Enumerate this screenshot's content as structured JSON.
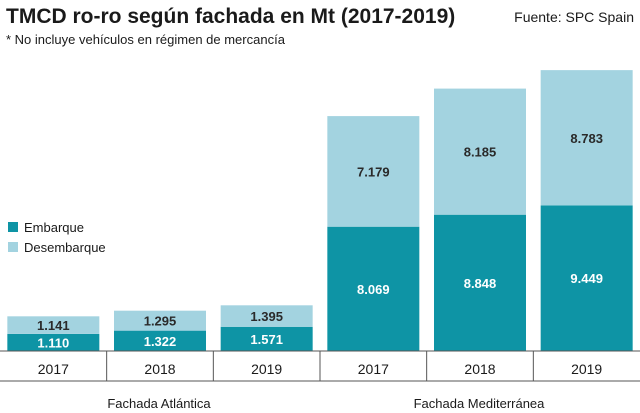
{
  "header": {
    "title": "TMCD ro-ro según fachada en Mt (2017-2019)",
    "subtitle": "* No incluye vehículos en régimen de mercancía",
    "source": "Fuente: SPC Spain"
  },
  "colors": {
    "embarque": "#0e94a5",
    "desembarque": "#a3d3e0",
    "axis": "#555555"
  },
  "chart_data": {
    "type": "bar",
    "stacked": true,
    "title": "TMCD ro-ro según fachada en Mt (2017-2019)",
    "subtitle": "* No incluye vehículos en régimen de mercancía",
    "categories": [
      "2017",
      "2018",
      "2019",
      "2017",
      "2018",
      "2019"
    ],
    "groups": [
      {
        "label": "Fachada Atlántica",
        "categories": [
          "2017",
          "2018",
          "2019"
        ]
      },
      {
        "label": "Fachada Mediterránea",
        "categories": [
          "2017",
          "2018",
          "2019"
        ]
      }
    ],
    "series": [
      {
        "name": "Embarque",
        "values": [
          1.11,
          1.322,
          1.571,
          8.069,
          8.848,
          9.449
        ],
        "labels": [
          "1.110",
          "1.322",
          "1.571",
          "8.069",
          "8.848",
          "9.449"
        ]
      },
      {
        "name": "Desembarque",
        "values": [
          1.141,
          1.295,
          1.395,
          7.179,
          8.185,
          8.783
        ],
        "labels": [
          "1.141",
          "1.295",
          "1.395",
          "7.179",
          "8.185",
          "8.783"
        ]
      }
    ],
    "legend": {
      "placement": "left",
      "entries": [
        "Embarque",
        "Desembarque"
      ]
    },
    "grid": false,
    "ylim": [
      0,
      18.5
    ]
  }
}
